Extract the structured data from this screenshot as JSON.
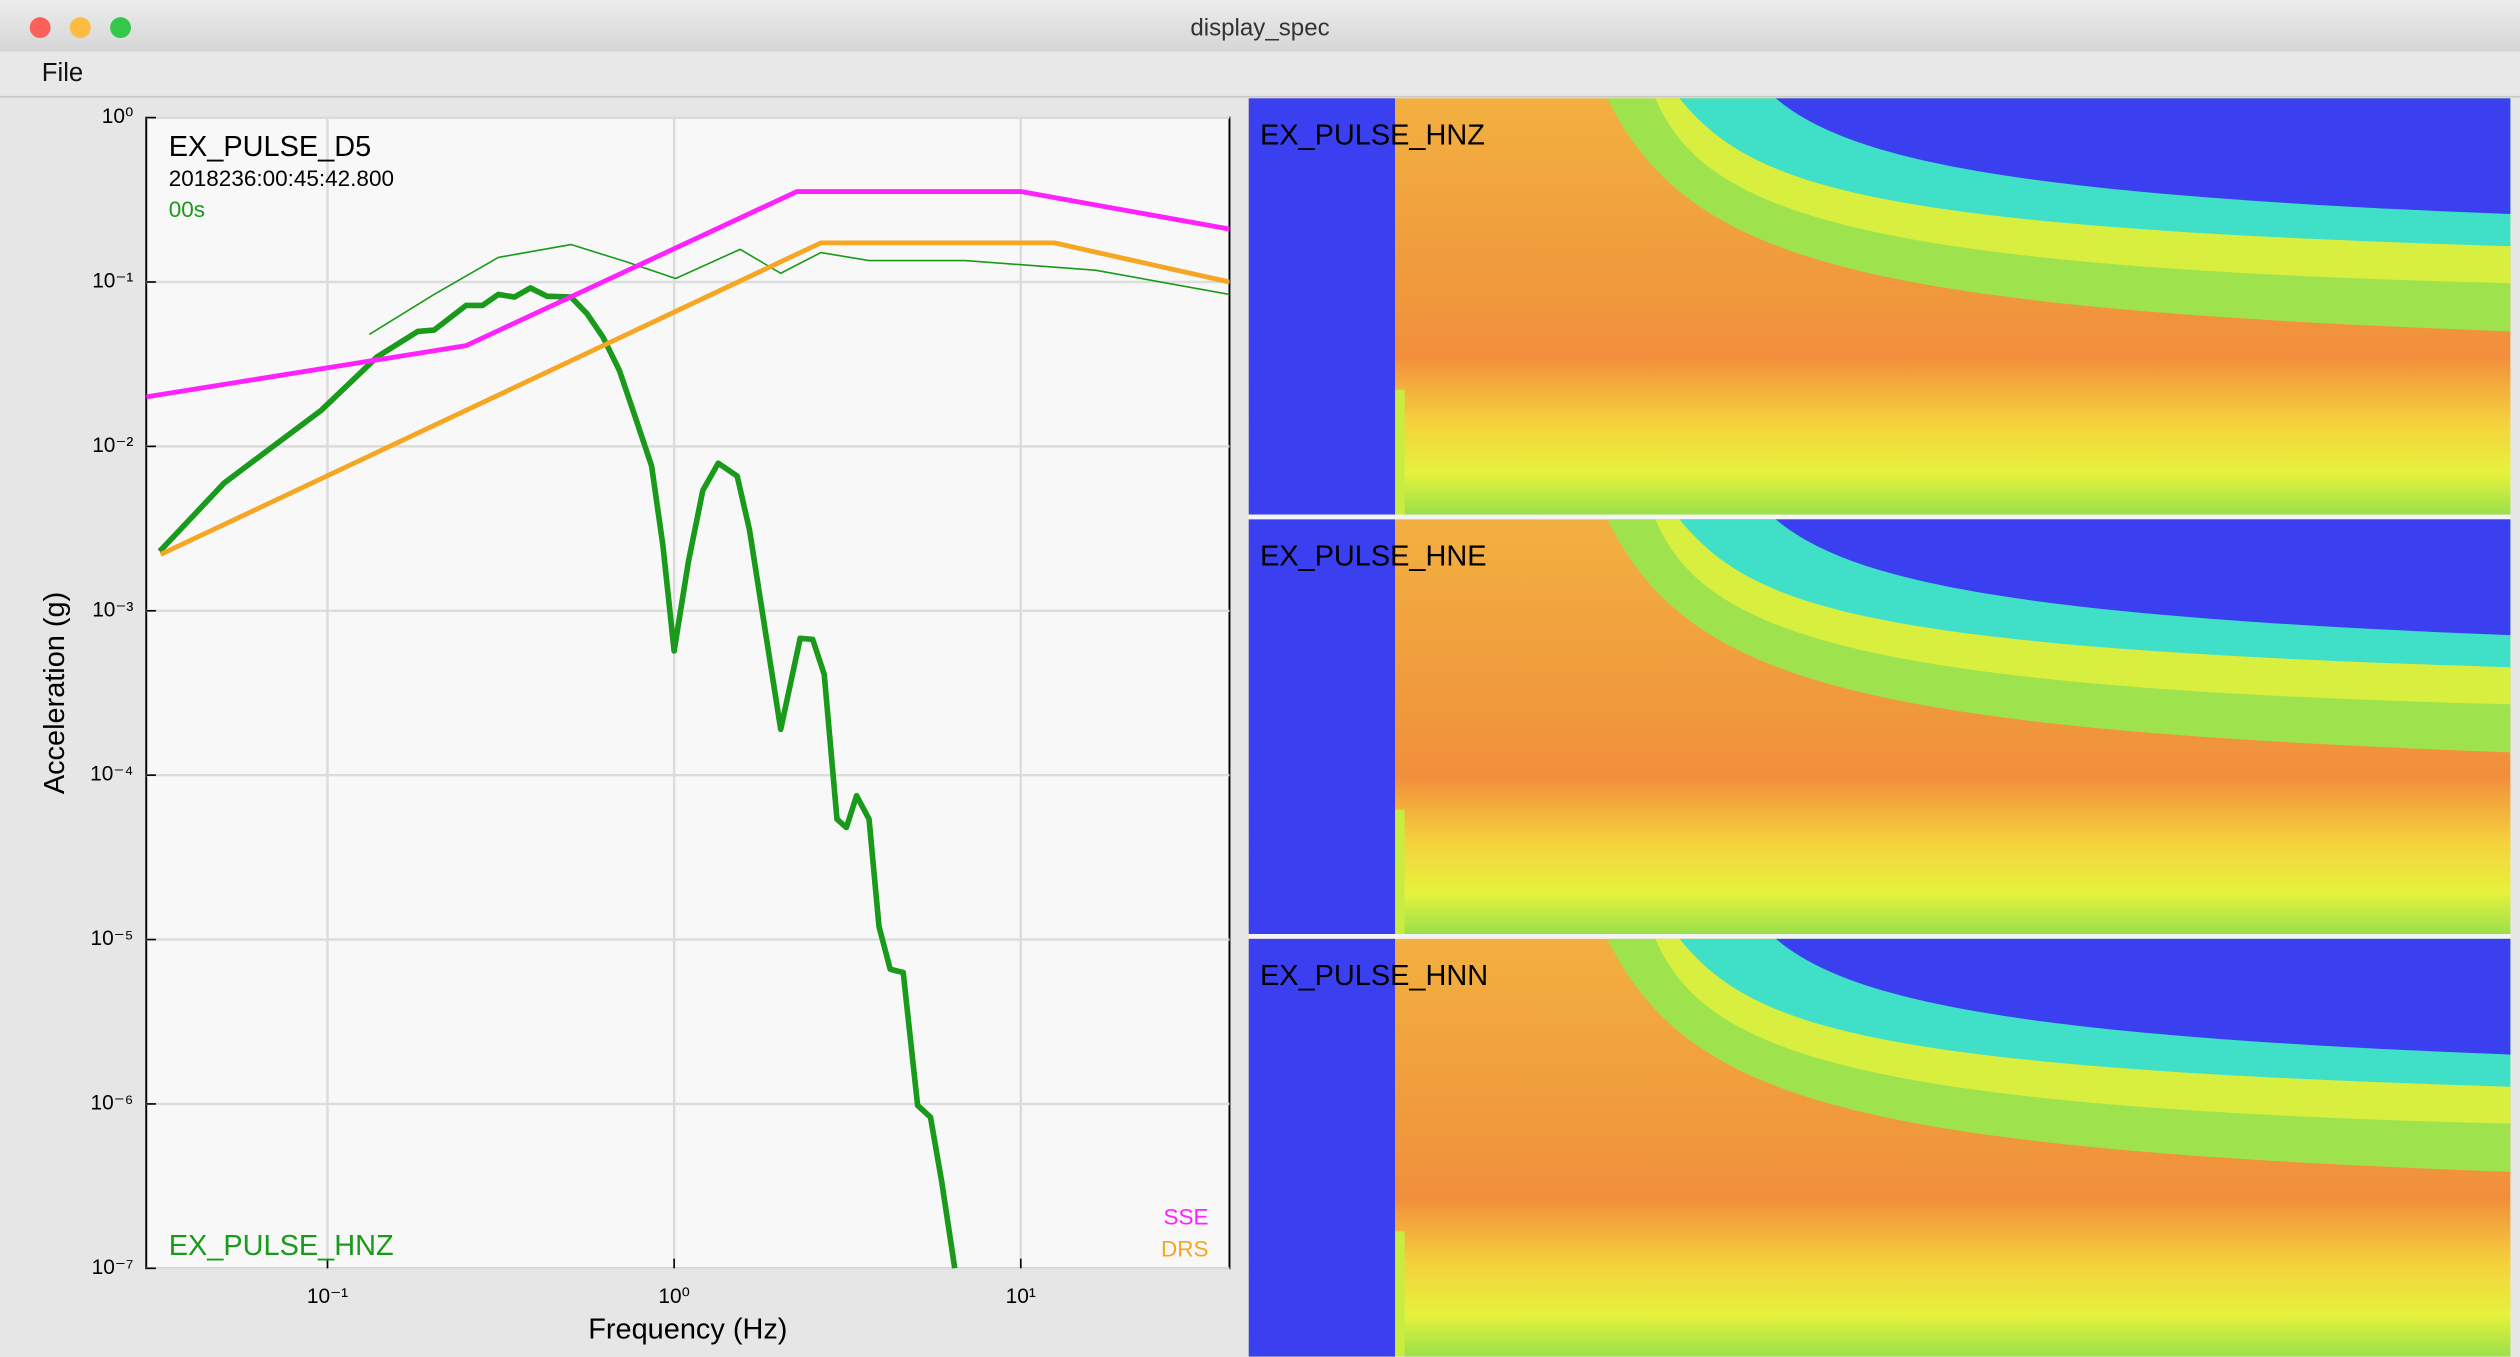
{
  "window": {
    "title": "display_spec"
  },
  "menu": [
    "File"
  ],
  "chart_data": {
    "type": "line",
    "title": "EX_PULSE_D5",
    "timestamp": "2018236:00:45:42.800",
    "subtitle": "00s",
    "x_label": "Frequency (Hz)",
    "y_label": "Acceleration (g)",
    "xscale": "log",
    "yscale": "log",
    "grid": true,
    "xlim": [
      0.03,
      40
    ],
    "ylim": [
      1e-07,
      1
    ],
    "xticks": [
      {
        "value": 0.1,
        "label": "10⁻¹"
      },
      {
        "value": 1,
        "label": "10⁰"
      },
      {
        "value": 10,
        "label": "10¹"
      }
    ],
    "yticks": [
      {
        "value": 1,
        "label": "10⁰"
      },
      {
        "value": 0.1,
        "label": "10⁻¹"
      },
      {
        "value": 0.01,
        "label": "10⁻²"
      },
      {
        "value": 0.001,
        "label": "10⁻³"
      },
      {
        "value": 0.0001,
        "label": "10⁻⁴"
      },
      {
        "value": 1e-05,
        "label": "10⁻⁵"
      },
      {
        "value": 1e-06,
        "label": "10⁻⁶"
      },
      {
        "value": 1e-07,
        "label": "10⁻⁷"
      }
    ],
    "series": [
      {
        "name": "EX_PULSE_HNZ",
        "color": "#1a9a1a",
        "line_width": 3.5,
        "x": [
          0.0328,
          0.0504,
          0.096,
          0.139,
          0.182,
          0.203,
          0.251,
          0.28,
          0.311,
          0.346,
          0.385,
          0.429,
          0.504,
          0.561,
          0.624,
          0.695,
          0.773,
          0.861,
          0.928,
          1.0,
          1.1,
          1.21,
          1.34,
          1.52,
          1.65,
          1.84,
          2.03,
          2.31,
          2.51,
          2.71,
          2.95,
          3.14,
          3.36,
          3.65,
          3.9,
          4.2,
          4.58,
          5.04,
          5.49,
          5.91,
          6.45
        ],
        "values": [
          0.0023,
          0.006,
          0.0166,
          0.035,
          0.05,
          0.051,
          0.072,
          0.072,
          0.084,
          0.081,
          0.092,
          0.082,
          0.081,
          0.064,
          0.046,
          0.029,
          0.015,
          0.0076,
          0.0025,
          0.00057,
          0.002,
          0.0054,
          0.0079,
          0.0066,
          0.0031,
          0.00071,
          0.00019,
          0.00068,
          0.00067,
          0.00041,
          5.4e-05,
          4.8e-05,
          7.5e-05,
          5.4e-05,
          1.2e-05,
          6.6e-06,
          6.3e-06,
          9.8e-07,
          8.3e-07,
          3.4e-07,
          1e-07
        ]
      },
      {
        "color": "#1a9a1a",
        "line_width": 1,
        "x": [
          0.132,
          0.203,
          0.311,
          0.504,
          0.733,
          1.01,
          1.55,
          2.03,
          2.65,
          3.65,
          6.9,
          16.4,
          40
        ],
        "values": [
          0.048,
          0.084,
          0.141,
          0.169,
          0.132,
          0.105,
          0.158,
          0.113,
          0.151,
          0.135,
          0.135,
          0.118,
          0.084
        ]
      },
      {
        "name": "SSE",
        "color": "#ff22ff",
        "line_width": 3,
        "x": [
          0.03,
          0.251,
          2.26,
          10,
          40
        ],
        "values": [
          0.02,
          0.041,
          0.355,
          0.355,
          0.21
        ]
      },
      {
        "name": "DRS",
        "color": "#f5a623",
        "line_width": 3,
        "x": [
          0.033,
          2.65,
          12.5,
          40
        ],
        "values": [
          0.0022,
          0.173,
          0.173,
          0.1
        ]
      }
    ]
  },
  "spectrograms": [
    {
      "label": "EX_PULSE_HNZ"
    },
    {
      "label": "EX_PULSE_HNE"
    },
    {
      "label": "EX_PULSE_HNN"
    }
  ]
}
